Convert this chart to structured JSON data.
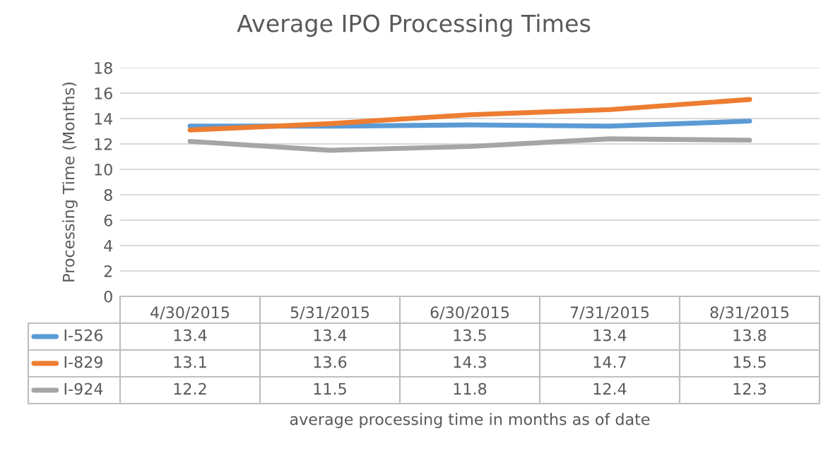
{
  "chart_data": {
    "type": "line",
    "title": "Average IPO Processing Times",
    "annotations": [
      "average processing time in months as of date"
    ],
    "ylabel": "Processing Time (Months)",
    "categories": [
      "4/30/2015",
      "5/31/2015",
      "6/30/2015",
      "7/31/2015",
      "8/31/2015"
    ],
    "series": [
      {
        "name": "I-526",
        "color": "#5b9bd5",
        "values": [
          13.4,
          13.4,
          13.5,
          13.4,
          13.8
        ]
      },
      {
        "name": "I-829",
        "color": "#ed7d31",
        "values": [
          13.1,
          13.6,
          14.3,
          14.7,
          15.5
        ]
      },
      {
        "name": "I-924",
        "color": "#a5a5a5",
        "values": [
          12.2,
          11.5,
          11.8,
          12.4,
          12.3
        ]
      }
    ],
    "ylim": [
      0,
      18
    ],
    "yticks": [
      0,
      2,
      4,
      6,
      8,
      10,
      12,
      14,
      16,
      18
    ],
    "grid": "y",
    "legend": "bottom",
    "data_labels": true,
    "marker": "none",
    "line_style": "solid"
  }
}
